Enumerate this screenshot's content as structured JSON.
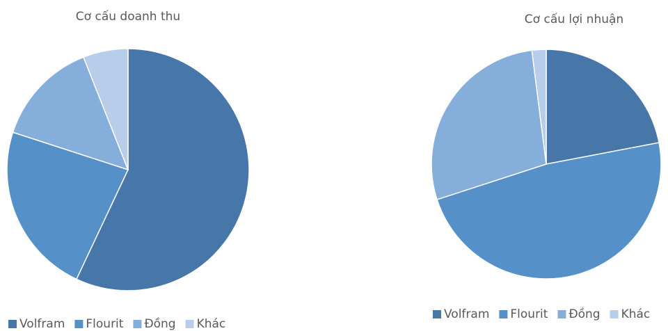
{
  "chart_data": [
    {
      "type": "pie",
      "title": "Cơ cấu doanh thu",
      "categories": [
        "Volfram",
        "Flourit",
        "Đồng",
        "Khác"
      ],
      "values": [
        57,
        23,
        14,
        6
      ],
      "colors": [
        "#4677a8",
        "#5590c8",
        "#86aedb",
        "#b8cde9"
      ]
    },
    {
      "type": "pie",
      "title": "Cơ cấu lợi nhuận",
      "categories": [
        "Volfram",
        "Flourit",
        "Đồng",
        "Khác"
      ],
      "values": [
        22,
        48,
        28,
        2
      ],
      "colors": [
        "#4677a8",
        "#5590c8",
        "#86aedb",
        "#b8cde9"
      ]
    }
  ]
}
